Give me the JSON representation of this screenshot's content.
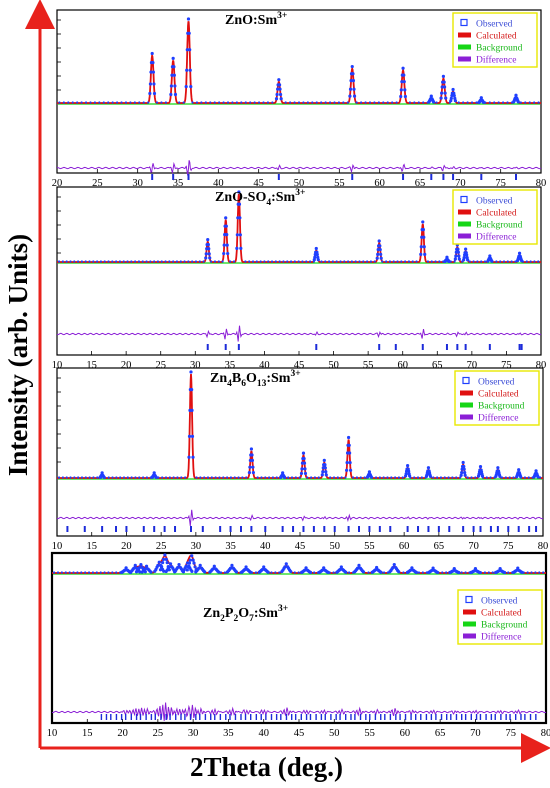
{
  "figure": {
    "ylabel": "Intensity (arb. Units)",
    "xlabel": "2Theta (deg.)",
    "colors": {
      "arrow": "#e8221c",
      "observed": "#1f3fff",
      "calculated": "#e01010",
      "background": "#16d616",
      "difference": "#8b1fd6",
      "bragg_ticks": "#1c2bd9",
      "legend_border": "#e8e800"
    },
    "legend": [
      "Observed",
      "Calculated",
      "Background",
      "Difference"
    ]
  },
  "chart_data": [
    {
      "type": "line",
      "title": "ZnO:Sm",
      "title_sup": "3+",
      "xlim": [
        20,
        80
      ],
      "xticks": [
        20,
        25,
        30,
        35,
        40,
        45,
        50,
        55,
        60,
        65,
        70,
        75,
        80
      ],
      "peaks": [
        [
          31.8,
          0.58
        ],
        [
          34.4,
          0.52
        ],
        [
          36.3,
          1.0
        ],
        [
          47.5,
          0.26
        ],
        [
          56.6,
          0.42
        ],
        [
          62.9,
          0.4
        ],
        [
          66.4,
          0.06
        ],
        [
          67.9,
          0.3
        ],
        [
          69.1,
          0.14
        ],
        [
          72.6,
          0.04
        ],
        [
          76.9,
          0.07
        ]
      ],
      "bragg": [
        31.8,
        34.4,
        36.3,
        47.5,
        56.6,
        62.9,
        66.4,
        67.9,
        69.1,
        72.6,
        76.9
      ]
    },
    {
      "type": "line",
      "title": "ZnO-SO",
      "title_sub": "4",
      "title_tail": ":Sm",
      "title_sup": "3+",
      "xlim": [
        10,
        80
      ],
      "xticks": [
        10,
        15,
        20,
        25,
        30,
        35,
        40,
        45,
        50,
        55,
        60,
        65,
        70,
        75,
        80
      ],
      "peaks": [
        [
          31.8,
          0.3
        ],
        [
          34.4,
          0.62
        ],
        [
          36.3,
          1.0
        ],
        [
          47.5,
          0.17
        ],
        [
          56.6,
          0.28
        ],
        [
          62.9,
          0.56
        ],
        [
          66.4,
          0.04
        ],
        [
          67.9,
          0.22
        ],
        [
          69.1,
          0.16
        ],
        [
          72.6,
          0.06
        ],
        [
          76.9,
          0.1
        ]
      ],
      "bragg": [
        31.8,
        34.4,
        36.3,
        47.5,
        56.6,
        59.0,
        62.9,
        66.4,
        67.9,
        69.1,
        72.6,
        76.9,
        77.2
      ]
    },
    {
      "type": "line",
      "title": "Zn",
      "title_sub": "4",
      "title_mid": "B",
      "title_sub2": "6",
      "title_mid2": "O",
      "title_sub3": "13",
      "title_tail": ":Sm",
      "title_sup": "3+",
      "xlim": [
        10,
        80
      ],
      "xticks": [
        10,
        15,
        20,
        25,
        30,
        35,
        40,
        45,
        50,
        55,
        60,
        65,
        70,
        75,
        80
      ],
      "peaks": [
        [
          16.5,
          0.03
        ],
        [
          24.0,
          0.03
        ],
        [
          29.3,
          1.0
        ],
        [
          38.0,
          0.26
        ],
        [
          42.5,
          0.03
        ],
        [
          45.5,
          0.22
        ],
        [
          48.5,
          0.15
        ],
        [
          52.0,
          0.37
        ],
        [
          55.0,
          0.04
        ],
        [
          60.5,
          0.1
        ],
        [
          63.5,
          0.08
        ],
        [
          68.5,
          0.13
        ],
        [
          71.0,
          0.09
        ],
        [
          73.5,
          0.08
        ],
        [
          76.5,
          0.06
        ],
        [
          79.0,
          0.05
        ]
      ],
      "bragg": [
        11.5,
        14.0,
        16.5,
        18.5,
        20.0,
        22.5,
        24.0,
        25.5,
        27.0,
        29.3,
        31.0,
        33.5,
        35.0,
        36.5,
        38.0,
        40.0,
        42.5,
        44.0,
        45.5,
        47.0,
        48.5,
        50.0,
        52.0,
        53.5,
        55.0,
        56.5,
        58.0,
        60.5,
        62.0,
        63.5,
        65.0,
        66.5,
        68.5,
        70.0,
        71.0,
        72.5,
        73.5,
        75.0,
        76.5,
        78.0,
        79.0
      ]
    },
    {
      "type": "line",
      "title": "Zn",
      "title_sub": "2",
      "title_mid": "P",
      "title_sub2": "2",
      "title_mid2": "O",
      "title_sub3": "7",
      "title_tail": ":Sm",
      "title_sup": "3+",
      "xlim": [
        10,
        80
      ],
      "xticks": [
        10,
        15,
        20,
        25,
        30,
        35,
        40,
        45,
        50,
        55,
        60,
        65,
        70,
        75,
        80
      ],
      "peaks": [
        [
          20.5,
          0.2
        ],
        [
          21.8,
          0.35
        ],
        [
          22.6,
          0.4
        ],
        [
          23.4,
          0.3
        ],
        [
          25.2,
          0.55
        ],
        [
          26.0,
          1.0
        ],
        [
          26.8,
          0.45
        ],
        [
          28.0,
          0.4
        ],
        [
          29.2,
          0.5
        ],
        [
          29.8,
          0.95
        ],
        [
          31.0,
          0.35
        ],
        [
          33.0,
          0.3
        ],
        [
          35.5,
          0.35
        ],
        [
          37.5,
          0.25
        ],
        [
          40.0,
          0.25
        ],
        [
          43.2,
          0.45
        ],
        [
          46.0,
          0.2
        ],
        [
          48.5,
          0.2
        ],
        [
          51.0,
          0.25
        ],
        [
          53.5,
          0.35
        ],
        [
          56.0,
          0.22
        ],
        [
          58.5,
          0.4
        ],
        [
          61.0,
          0.2
        ],
        [
          64.0,
          0.18
        ],
        [
          67.0,
          0.15
        ],
        [
          70.0,
          0.15
        ],
        [
          73.5,
          0.15
        ],
        [
          76.0,
          0.18
        ]
      ],
      "bragg_range": [
        17,
        79
      ]
    }
  ]
}
